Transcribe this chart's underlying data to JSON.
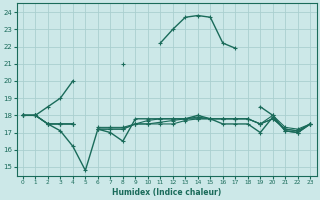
{
  "x": [
    0,
    1,
    2,
    3,
    4,
    5,
    6,
    7,
    8,
    9,
    10,
    11,
    12,
    13,
    14,
    15,
    16,
    17,
    18,
    19,
    20,
    21,
    22,
    23
  ],
  "line1": [
    18,
    18,
    18.5,
    19,
    20,
    null,
    null,
    null,
    21,
    null,
    null,
    22.2,
    23,
    23.7,
    23.8,
    23.7,
    22.2,
    21.9,
    null,
    18.5,
    18.0,
    17.1,
    17.0,
    17.5
  ],
  "line2": [
    18,
    18,
    17.5,
    17.1,
    16.2,
    14.8,
    17.2,
    17.0,
    16.5,
    17.8,
    17.8,
    17.8,
    17.8,
    17.8,
    18.0,
    17.8,
    17.5,
    17.5,
    17.5,
    17.0,
    17.9,
    17.1,
    17.0,
    17.5
  ],
  "line3": [
    18,
    18,
    17.5,
    17.5,
    17.5,
    null,
    17.3,
    17.3,
    17.3,
    17.5,
    17.7,
    17.8,
    17.8,
    17.8,
    17.8,
    17.8,
    17.8,
    17.8,
    17.8,
    17.5,
    18.0,
    17.3,
    17.2,
    17.5
  ],
  "line4": [
    18,
    18,
    17.5,
    17.5,
    17.5,
    null,
    17.2,
    17.2,
    17.2,
    17.5,
    17.5,
    17.5,
    17.5,
    17.7,
    17.8,
    17.8,
    17.8,
    17.8,
    17.8,
    17.5,
    17.8,
    17.2,
    17.1,
    17.5
  ],
  "line5": [
    18,
    18,
    17.5,
    17.5,
    17.5,
    null,
    17.2,
    17.2,
    17.2,
    17.5,
    17.5,
    17.6,
    17.7,
    17.8,
    17.9,
    17.8,
    17.8,
    17.8,
    17.8,
    17.5,
    17.8,
    17.2,
    17.1,
    17.5
  ],
  "color": "#1a6b5a",
  "bg_color": "#cce8e8",
  "grid_color": "#aacfcf",
  "xlabel": "Humidex (Indice chaleur)",
  "ylim": [
    14.5,
    24.5
  ],
  "xlim": [
    -0.5,
    23.5
  ],
  "yticks": [
    15,
    16,
    17,
    18,
    19,
    20,
    21,
    22,
    23,
    24
  ],
  "xticks": [
    0,
    1,
    2,
    3,
    4,
    5,
    6,
    7,
    8,
    9,
    10,
    11,
    12,
    13,
    14,
    15,
    16,
    17,
    18,
    19,
    20,
    21,
    22,
    23
  ],
  "marker": "+"
}
